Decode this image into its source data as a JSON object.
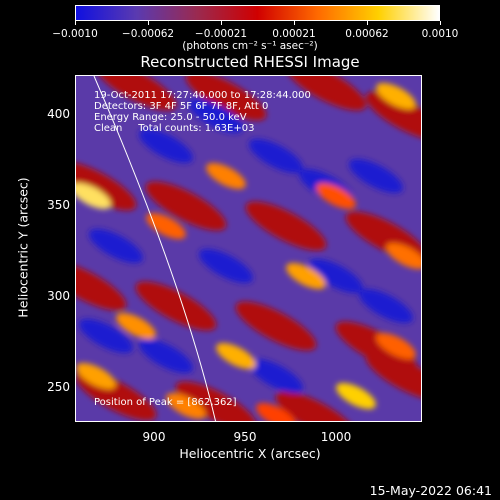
{
  "colorbar": {
    "ticks": [
      "−0.0010",
      "−0.00062",
      "−0.00021",
      "0.00021",
      "0.00062",
      "0.0010"
    ],
    "units": "(photons cm⁻² s⁻¹ asec⁻²)",
    "colors": [
      "#1010e0",
      "#5a3ab0",
      "#9a2a50",
      "#d00000",
      "#ff6a00",
      "#ffd000",
      "#ffffff"
    ]
  },
  "plot": {
    "title": "Reconstructed RHESSI Image",
    "xlabel": "Heliocentric X (arcsec)",
    "ylabel": "Heliocentric Y (arcsec)",
    "xticks": [
      "900",
      "950",
      "1000"
    ],
    "yticks": [
      "250",
      "300",
      "350",
      "400"
    ],
    "info_lines": [
      "19-Oct-2011 17:27:40.000 to 17:28:44.000",
      "Detectors: 3F 4F 5F 6F 7F 8F, Att 0",
      "Energy Range: 25.0 - 50.0 keV",
      "Clean     Total counts: 1.63E+03"
    ],
    "peak": "Position of Peak = [862,362]"
  },
  "footer": {
    "datestamp": "15-May-2022 06:41"
  }
}
